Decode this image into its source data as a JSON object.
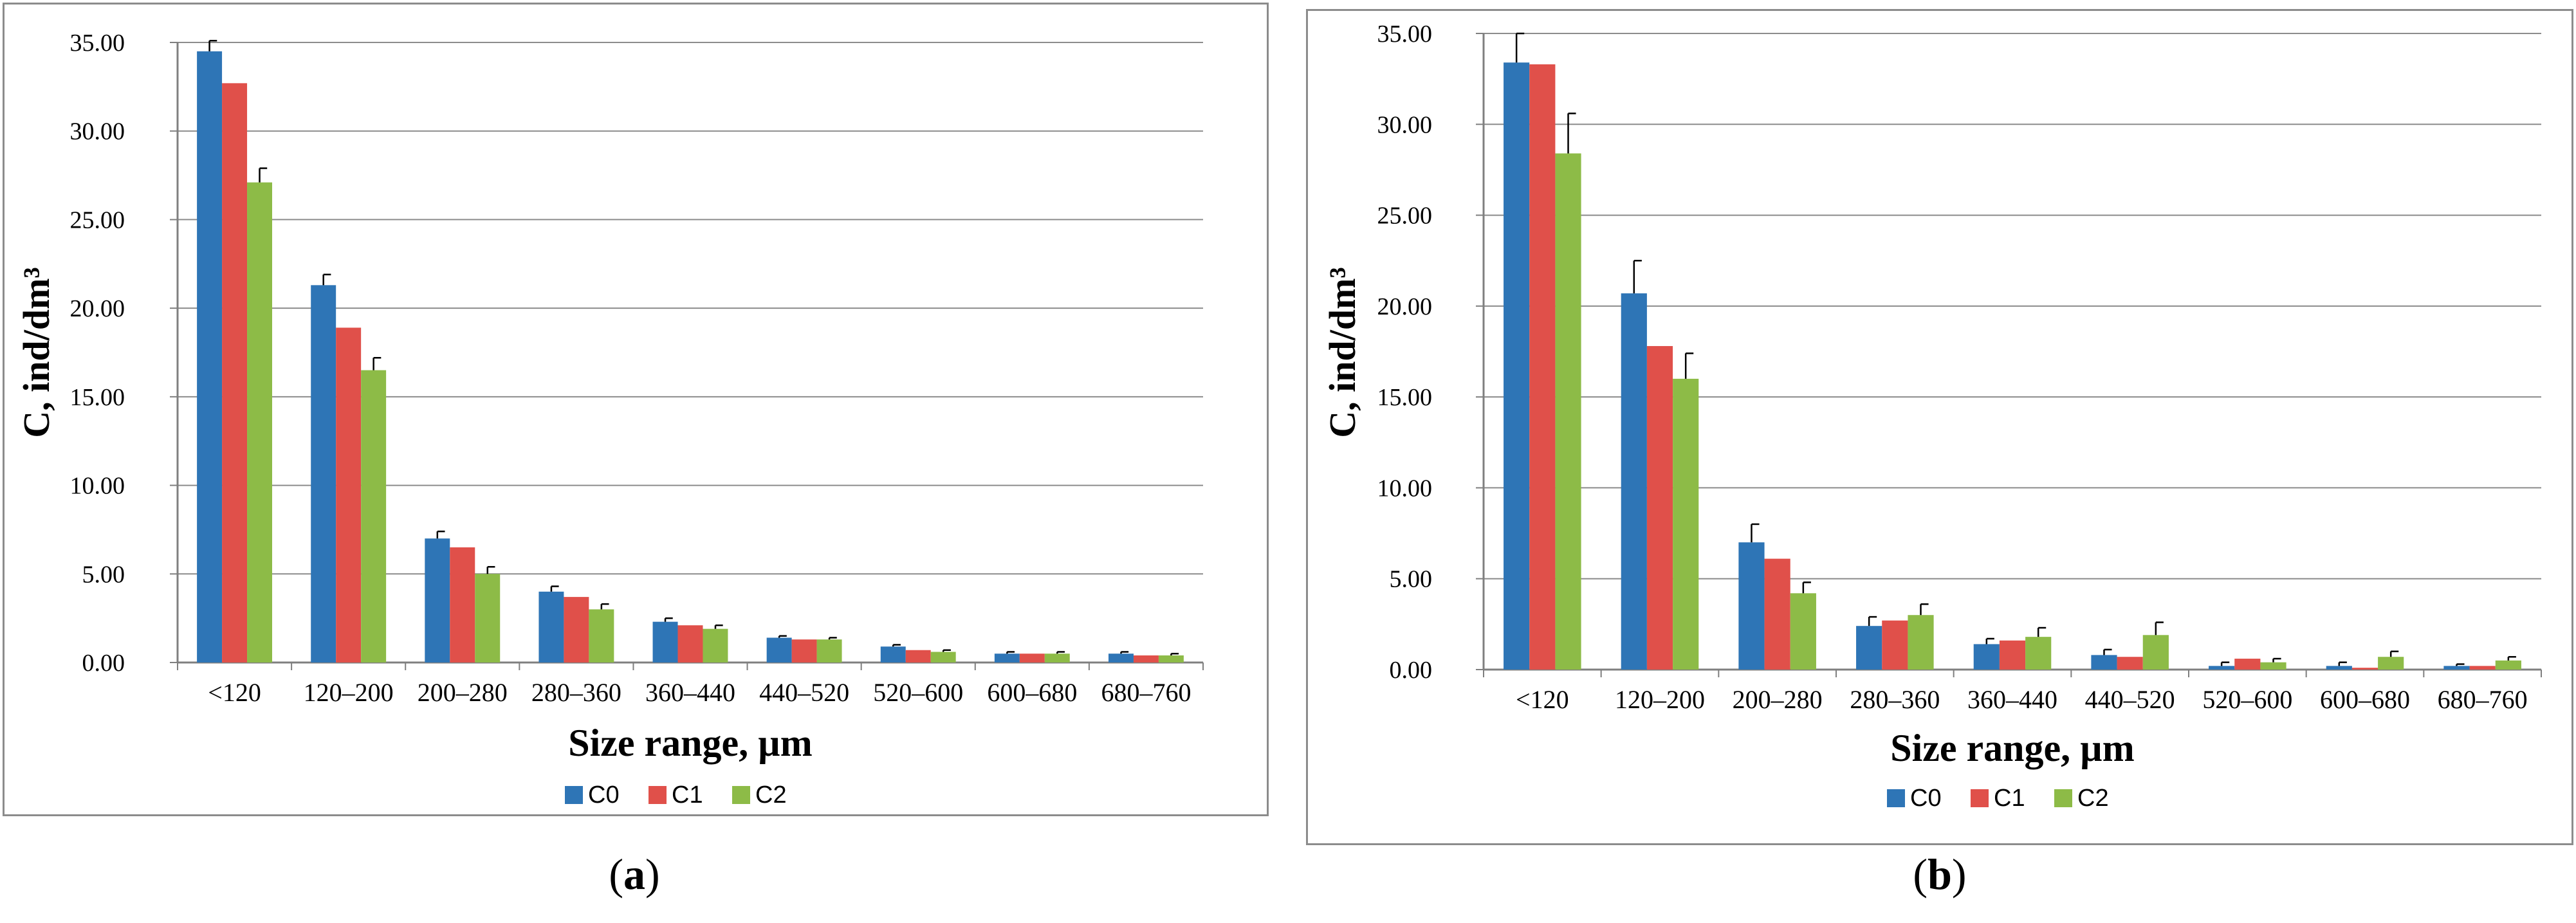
{
  "colors": {
    "C0": "#2e75b6",
    "C1": "#e0504a",
    "C2": "#8dbb47",
    "grid": "#8c8c8c",
    "axis": "#7f7f7f"
  },
  "panels": [
    {
      "label_open": "(",
      "label_letter": "a",
      "label_close": ")"
    },
    {
      "label_open": "(",
      "label_letter": "b",
      "label_close": ")"
    }
  ],
  "chart_data": [
    {
      "type": "bar",
      "title": "",
      "xlabel": "Size range, µm",
      "ylabel": "C, ind/dm³",
      "ylim": [
        0,
        35
      ],
      "yticks": [
        "0.00",
        "5.00",
        "10.00",
        "15.00",
        "20.00",
        "25.00",
        "30.00",
        "35.00"
      ],
      "grid": true,
      "legend_position": "bottom",
      "categories": [
        "<120",
        "120–200",
        "200–280",
        "280–360",
        "360–440",
        "440–520",
        "520–600",
        "600–680",
        "680–760"
      ],
      "series": [
        {
          "name": "C0",
          "values": [
            34.5,
            21.3,
            7.0,
            4.0,
            2.3,
            1.4,
            0.9,
            0.5,
            0.5
          ],
          "errors": [
            0.6,
            0.6,
            0.4,
            0.3,
            0.2,
            0.1,
            0.1,
            0.1,
            0.1
          ]
        },
        {
          "name": "C1",
          "values": [
            32.7,
            18.9,
            6.5,
            3.7,
            2.1,
            1.3,
            0.7,
            0.5,
            0.4
          ],
          "errors": [
            0,
            0,
            0,
            0,
            0,
            0,
            0,
            0,
            0
          ]
        },
        {
          "name": "C2",
          "values": [
            27.1,
            16.5,
            5.0,
            3.0,
            1.9,
            1.3,
            0.6,
            0.5,
            0.4
          ],
          "errors": [
            0.8,
            0.7,
            0.4,
            0.3,
            0.2,
            0.1,
            0.1,
            0.1,
            0.1
          ]
        }
      ]
    },
    {
      "type": "bar",
      "title": "",
      "xlabel": "Size range, µm",
      "ylabel": "C, ind/dm³",
      "ylim": [
        0,
        35
      ],
      "yticks": [
        "0.00",
        "5.00",
        "10.00",
        "15.00",
        "20.00",
        "25.00",
        "30.00",
        "35.00"
      ],
      "grid": true,
      "legend_position": "bottom",
      "categories": [
        "<120",
        "120–200",
        "200–280",
        "280–360",
        "360–440",
        "440–520",
        "520–600",
        "600–680",
        "680–760"
      ],
      "series": [
        {
          "name": "C0",
          "values": [
            33.4,
            20.7,
            7.0,
            2.4,
            1.4,
            0.8,
            0.2,
            0.2,
            0.2
          ],
          "errors": [
            1.6,
            1.8,
            1.0,
            0.5,
            0.3,
            0.3,
            0.2,
            0.2,
            0.1
          ]
        },
        {
          "name": "C1",
          "values": [
            33.3,
            17.8,
            6.1,
            2.7,
            1.6,
            0.7,
            0.6,
            0.1,
            0.2
          ],
          "errors": [
            0,
            0,
            0,
            0,
            0,
            0,
            0,
            0,
            0
          ]
        },
        {
          "name": "C2",
          "values": [
            28.4,
            16.0,
            4.2,
            3.0,
            1.8,
            1.9,
            0.4,
            0.7,
            0.5
          ],
          "errors": [
            2.2,
            1.4,
            0.6,
            0.6,
            0.5,
            0.7,
            0.2,
            0.3,
            0.2
          ]
        }
      ]
    }
  ]
}
